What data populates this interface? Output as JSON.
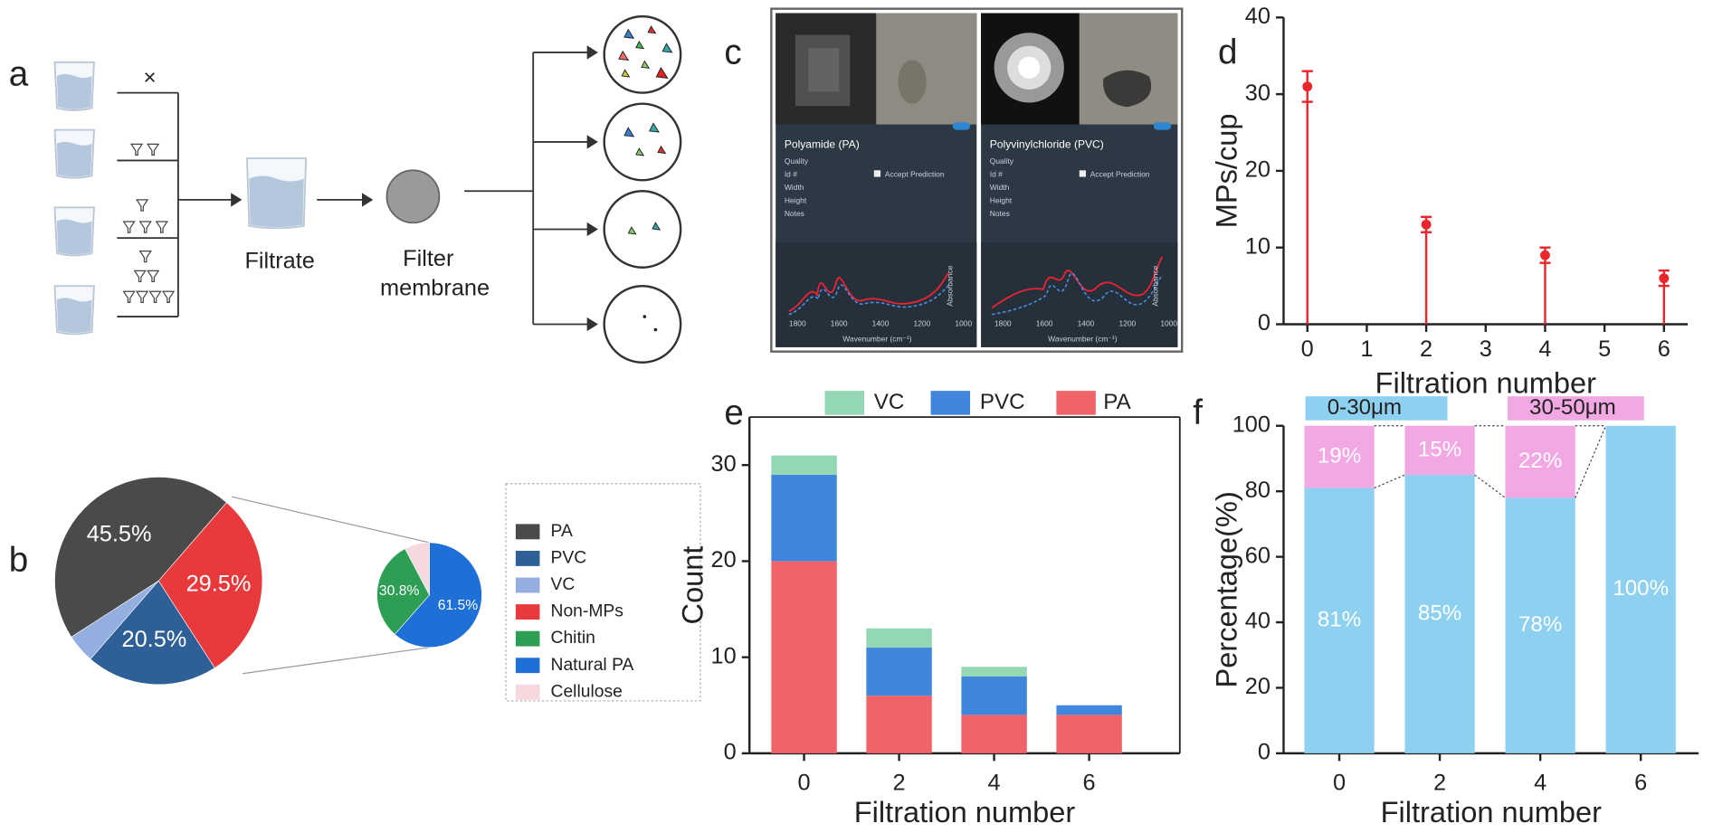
{
  "panel_labels": [
    "a",
    "b",
    "c",
    "d",
    "e",
    "f"
  ],
  "panel_a": {
    "cross": "×",
    "filtrate": "Filtrate",
    "membrane_lines": [
      "Filter",
      "membrane"
    ]
  },
  "panel_c": {
    "cards": [
      {
        "name": "Polyamide (PA)",
        "accept": "Accept Prediction"
      },
      {
        "name": "Polyvinylchloride (PVC)",
        "accept": "Accept Prediction"
      }
    ],
    "fields": [
      "Quality",
      "Id #",
      "Width",
      "Height",
      "Notes"
    ],
    "spectrum_xticks": [
      "1800",
      "1600",
      "1400",
      "1200",
      "1000"
    ],
    "spectrum_xlabel": "Wavenumber (cm⁻¹)",
    "spectrum_ylabel": "Absorbance"
  },
  "chart_data": [
    {
      "type": "pie",
      "categories": [
        "PA",
        "PVC",
        "VC",
        "Non-MPs"
      ],
      "values": [
        45.5,
        20.5,
        4.5,
        29.5
      ],
      "value_labels": [
        "45.5%",
        "20.5%",
        null,
        "29.5%"
      ],
      "colors": [
        "#4a4a4a",
        "#2e5f96",
        "#94aee0",
        "#e8393d"
      ],
      "legend": "right"
    },
    {
      "type": "pie",
      "categories": [
        "Chitin",
        "Natural PA",
        "Cellulose"
      ],
      "values": [
        30.8,
        61.5,
        7.7
      ],
      "value_labels": [
        "30.8%",
        "61.5%",
        null
      ],
      "colors": [
        "#2e9e55",
        "#1e6fd6",
        "#f5d9df"
      ],
      "legend": "right"
    },
    {
      "type": "scatter",
      "x": [
        0,
        2,
        4,
        6
      ],
      "values": [
        31,
        13,
        9,
        6
      ],
      "errors": [
        2,
        1,
        1,
        1
      ],
      "color": "#e8262b",
      "xlim": [
        -0.4,
        6.4
      ],
      "xticks": [
        0,
        1,
        2,
        3,
        4,
        5,
        6
      ],
      "ylim": [
        0,
        40
      ],
      "yticks": [
        0,
        10,
        20,
        30,
        40
      ],
      "xlabel": "Filtration number",
      "ylabel": "MPs/cup"
    },
    {
      "type": "stacked_bar",
      "categories": [
        "0",
        "2",
        "4",
        "6"
      ],
      "series": [
        {
          "name": "PA",
          "color": "#f06469",
          "values": [
            20,
            6,
            4,
            4
          ]
        },
        {
          "name": "PVC",
          "color": "#3f86dc",
          "values": [
            9,
            5,
            4,
            1
          ]
        },
        {
          "name": "VC",
          "color": "#93d7b3",
          "values": [
            2,
            2,
            1,
            0
          ]
        }
      ],
      "ylim": [
        0,
        35
      ],
      "yticks": [
        0,
        10,
        20,
        30
      ],
      "xlabel": "Filtration number",
      "ylabel": "Count",
      "legend": "top"
    },
    {
      "type": "stacked_bar",
      "categories": [
        "0",
        "2",
        "4",
        "6"
      ],
      "series": [
        {
          "name": "0-30μm",
          "color": "#8dd0ef",
          "values": [
            81,
            85,
            78,
            100
          ],
          "value_labels": [
            "81%",
            "85%",
            "78%",
            "100%"
          ]
        },
        {
          "name": "30-50μm",
          "color": "#f2a8e3",
          "values": [
            19,
            15,
            22,
            0
          ],
          "value_labels": [
            "19%",
            "15%",
            "22%",
            null
          ]
        }
      ],
      "ylim": [
        0,
        100
      ],
      "yticks": [
        0,
        20,
        40,
        60,
        80,
        100
      ],
      "xlabel": "Filtration number",
      "ylabel": "Percentage(%)",
      "legend": "top",
      "connectors": true
    }
  ]
}
